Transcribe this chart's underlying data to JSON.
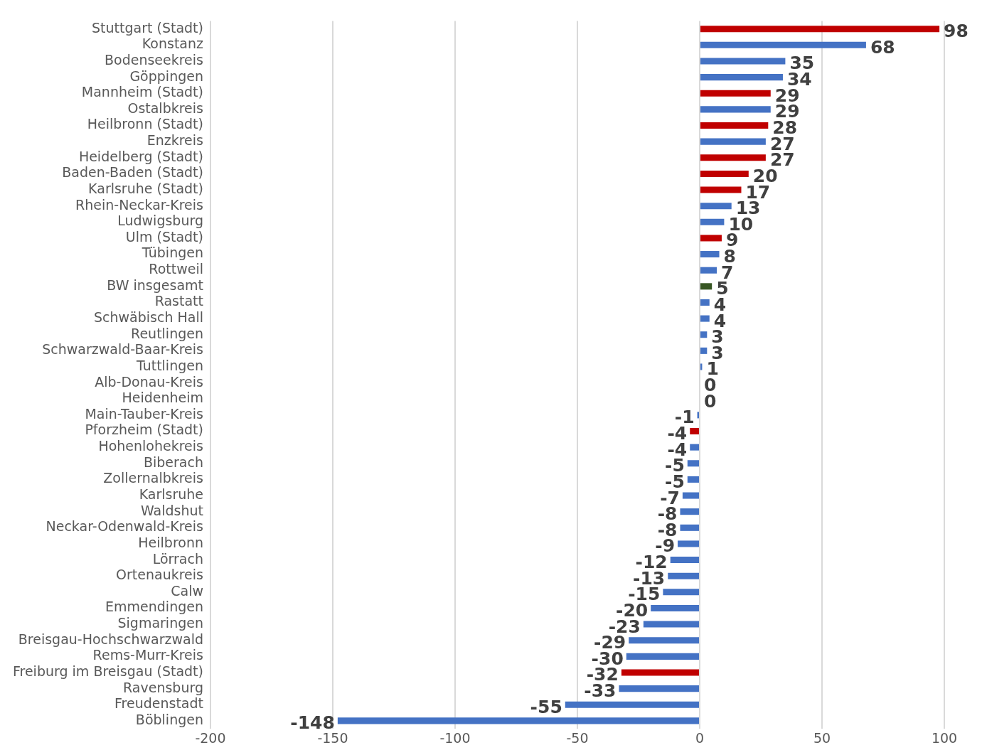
{
  "chart_data": {
    "type": "bar",
    "orientation": "horizontal",
    "categories": [
      "Stuttgart (Stadt)",
      "Konstanz",
      "Bodenseekreis",
      "Göppingen",
      "Mannheim (Stadt)",
      "Ostalbkreis",
      "Heilbronn (Stadt)",
      "Enzkreis",
      "Heidelberg (Stadt)",
      "Baden-Baden (Stadt)",
      "Karlsruhe (Stadt)",
      "Rhein-Neckar-Kreis",
      "Ludwigsburg",
      "Ulm (Stadt)",
      "Tübingen",
      "Rottweil",
      "BW insgesamt",
      "Rastatt",
      "Schwäbisch Hall",
      "Reutlingen",
      "Schwarzwald-Baar-Kreis",
      "Tuttlingen",
      "Alb-Donau-Kreis",
      "Heidenheim",
      "Main-Tauber-Kreis",
      "Pforzheim (Stadt)",
      "Hohenlohekreis",
      "Biberach",
      "Zollernalbkreis",
      "Karlsruhe",
      "Waldshut",
      "Neckar-Odenwald-Kreis",
      "Heilbronn",
      "Lörrach",
      "Ortenaukreis",
      "Calw",
      "Emmendingen",
      "Sigmaringen",
      "Breisgau-Hochschwarzwald",
      "Rems-Murr-Kreis",
      "Freiburg im Breisgau (Stadt)",
      "Ravensburg",
      "Freudenstadt",
      "Böblingen"
    ],
    "values": [
      98,
      68,
      35,
      34,
      29,
      29,
      28,
      27,
      27,
      20,
      17,
      13,
      10,
      9,
      8,
      7,
      5,
      4,
      4,
      3,
      3,
      1,
      0,
      0,
      -1,
      -4,
      -4,
      -5,
      -5,
      -7,
      -8,
      -8,
      -9,
      -12,
      -13,
      -15,
      -20,
      -23,
      -29,
      -30,
      -32,
      -33,
      -55,
      -148
    ],
    "colors": [
      "#c00000",
      "#4472c4",
      "#4472c4",
      "#4472c4",
      "#c00000",
      "#4472c4",
      "#c00000",
      "#4472c4",
      "#c00000",
      "#c00000",
      "#c00000",
      "#4472c4",
      "#4472c4",
      "#c00000",
      "#4472c4",
      "#4472c4",
      "#375623",
      "#4472c4",
      "#4472c4",
      "#4472c4",
      "#4472c4",
      "#4472c4",
      "#4472c4",
      "#4472c4",
      "#4472c4",
      "#c00000",
      "#4472c4",
      "#4472c4",
      "#4472c4",
      "#4472c4",
      "#4472c4",
      "#4472c4",
      "#4472c4",
      "#4472c4",
      "#4472c4",
      "#4472c4",
      "#4472c4",
      "#4472c4",
      "#4472c4",
      "#4472c4",
      "#c00000",
      "#4472c4",
      "#4472c4",
      "#4472c4"
    ],
    "xlim": [
      -200,
      100
    ],
    "xticks": [
      -200,
      -150,
      -100,
      -50,
      0,
      50,
      100
    ],
    "grid": "x",
    "data_labels": true,
    "legend": false
  }
}
